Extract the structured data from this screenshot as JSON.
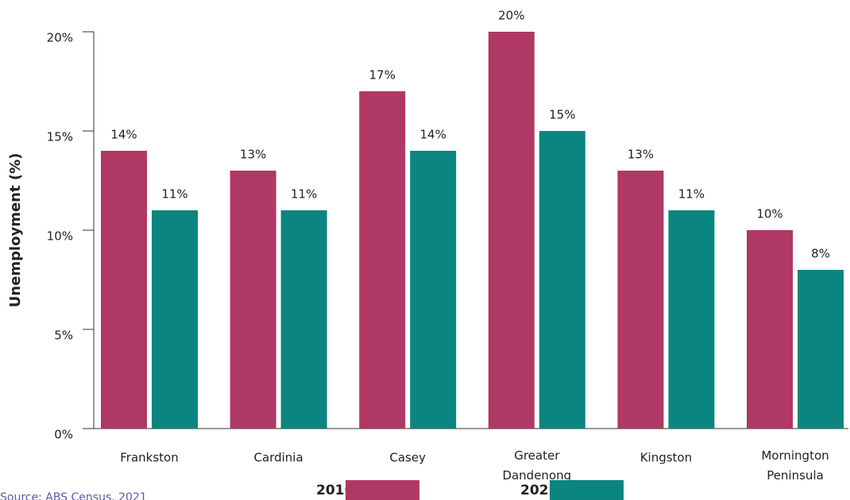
{
  "chart_data": {
    "type": "bar",
    "y_label": "Unemployment (%)",
    "categories": [
      "Frankston",
      "Cardinia",
      "Casey",
      "Greater Dandenong",
      "Kingston",
      "Mornington Peninsula"
    ],
    "series": [
      {
        "name": "2016",
        "color": "#b03864",
        "values": [
          14,
          13,
          17,
          20,
          13,
          10
        ],
        "value_labels": [
          "14%",
          "13%",
          "17%",
          "20%",
          "13%",
          "10%"
        ]
      },
      {
        "name": "2021",
        "color": "#0b8580",
        "values": [
          11,
          11,
          14,
          15,
          11,
          8
        ],
        "value_labels": [
          "11%",
          "11%",
          "14%",
          "15%",
          "11%",
          "8%"
        ]
      }
    ],
    "ylim": [
      0,
      20
    ],
    "yticks": [
      {
        "value": 0,
        "label": "0%"
      },
      {
        "value": 5,
        "label": "5%"
      },
      {
        "value": 10,
        "label": "10%"
      },
      {
        "value": 15,
        "label": "15%"
      },
      {
        "value": 20,
        "label": "20%"
      }
    ],
    "source": "Source: ABS Census, 2021"
  }
}
